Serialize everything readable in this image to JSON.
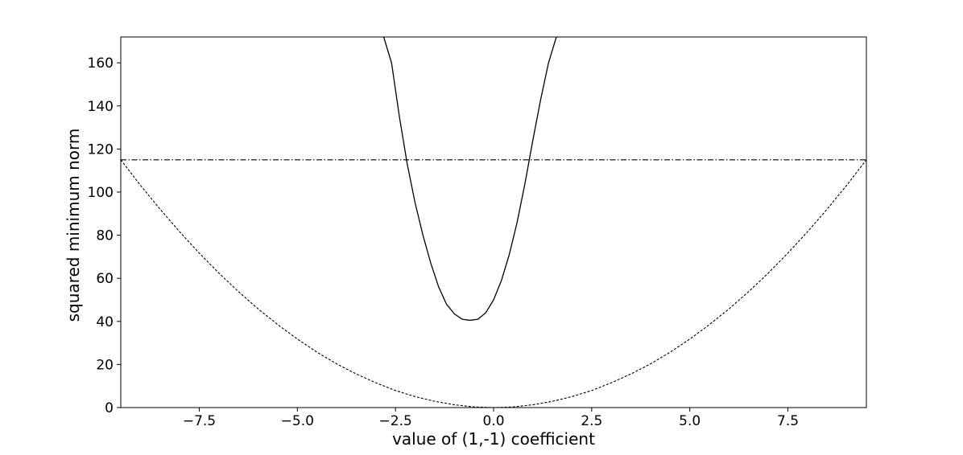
{
  "chart_data": {
    "type": "line",
    "title": "",
    "xlabel": "value of (1,-1) coefficient",
    "ylabel": "squared minimum norm",
    "xlim": [
      -9.5,
      9.5
    ],
    "ylim": [
      0,
      172
    ],
    "x_ticks": [
      -7.5,
      -5.0,
      -2.5,
      0.0,
      2.5,
      5.0,
      7.5
    ],
    "x_tick_labels": [
      "−7.5",
      "−5.0",
      "−2.5",
      "0.0",
      "2.5",
      "5.0",
      "7.5"
    ],
    "y_ticks": [
      0,
      20,
      40,
      60,
      80,
      100,
      120,
      140,
      160
    ],
    "y_tick_labels": [
      "0",
      "20",
      "40",
      "60",
      "80",
      "100",
      "120",
      "140",
      "160"
    ],
    "grid": false,
    "legend": "none",
    "colors": {
      "line": "#000000",
      "axes": "#000000"
    },
    "series": [
      {
        "style": "solid",
        "x": [
          -2.8,
          -2.6,
          -2.4,
          -2.2,
          -2.0,
          -1.8,
          -1.6,
          -1.4,
          -1.2,
          -1.0,
          -0.8,
          -0.6,
          -0.4,
          -0.2,
          0.0,
          0.2,
          0.4,
          0.6,
          0.8,
          1.0,
          1.2,
          1.4,
          1.6,
          1.65
        ],
        "y": [
          172,
          160,
          135,
          113,
          95,
          80,
          67,
          56,
          48,
          43.5,
          41,
          40.5,
          41,
          44,
          50,
          59,
          71,
          86,
          104,
          124,
          143,
          160,
          172,
          172
        ]
      },
      {
        "style": "dashed",
        "x": [
          -9.5,
          -9.0,
          -8.5,
          -8.0,
          -7.5,
          -7.0,
          -6.5,
          -6.0,
          -5.5,
          -5.0,
          -4.5,
          -4.0,
          -3.5,
          -3.0,
          -2.5,
          -2.0,
          -1.5,
          -1.0,
          -0.5,
          0.0,
          0.5,
          1.0,
          1.5,
          2.0,
          2.5,
          3.0,
          3.5,
          4.0,
          4.5,
          5.0,
          5.5,
          6.0,
          6.5,
          7.0,
          7.5,
          8.0,
          8.5,
          9.0,
          9.5
        ],
        "y": [
          115,
          103.2,
          92.1,
          81.6,
          71.7,
          62.4,
          53.8,
          45.8,
          38.5,
          31.8,
          25.7,
          20.3,
          15.6,
          11.5,
          7.9,
          5.1,
          2.9,
          1.3,
          0.3,
          0,
          0.3,
          1.3,
          2.9,
          5.1,
          7.9,
          11.5,
          15.6,
          20.3,
          25.7,
          31.8,
          38.5,
          45.8,
          53.8,
          62.4,
          71.7,
          81.6,
          92.1,
          103.2,
          115
        ]
      },
      {
        "style": "dashdot",
        "x": [
          -9.5,
          9.5
        ],
        "y": [
          115,
          115
        ]
      }
    ]
  }
}
